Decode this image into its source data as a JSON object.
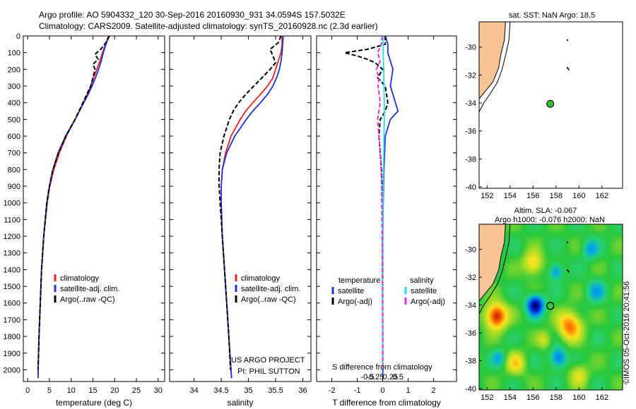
{
  "header": {
    "line1": "Argo profile: AO 5904332_120 30-Sep-2016 20160930_931 34.0594S 157.5032E",
    "line2": "Climatology: CARS2009. Satellite-adjusted climatology: synTS_20160928.nc (2.3d earlier)"
  },
  "colors": {
    "climatology": "#e8231f",
    "satellite": "#1f2fd6",
    "argo": "#000000",
    "sal_satellite": "#22e0e0",
    "sal_argo": "#e030e0",
    "land": "#f9c596",
    "float_marker": "#33bb33"
  },
  "chart_data": [
    {
      "type": "line",
      "id": "temperature",
      "xlabel": "temperature (deg C)",
      "ylabel": "",
      "xlim": [
        -1,
        31.5
      ],
      "ylim": [
        2070,
        0
      ],
      "xticks": [
        0,
        5,
        10,
        15,
        20,
        25,
        30
      ],
      "yticks": [
        0,
        100,
        200,
        300,
        400,
        500,
        600,
        700,
        800,
        900,
        1000,
        1100,
        1200,
        1300,
        1400,
        1500,
        1600,
        1700,
        1800,
        1900,
        2000
      ],
      "legend": [
        "climatology",
        "satellite-adj. clim.",
        "Argo(..raw -QC)"
      ],
      "series": [
        {
          "name": "climatology",
          "style": "red",
          "depth": [
            0,
            50,
            100,
            150,
            200,
            250,
            300,
            350,
            400,
            450,
            500,
            600,
            700,
            800,
            900,
            1000,
            1200,
            1400,
            1600,
            1800,
            2000,
            2050
          ],
          "values": [
            18.6,
            17.9,
            17.2,
            16.6,
            15.9,
            15.2,
            14.5,
            13.7,
            12.8,
            11.9,
            10.9,
            8.9,
            7.3,
            6.0,
            5.1,
            4.5,
            3.7,
            3.2,
            2.9,
            2.6,
            2.4,
            2.4
          ]
        },
        {
          "name": "satellite-adj. clim.",
          "style": "blue",
          "depth": [
            0,
            50,
            100,
            150,
            200,
            250,
            300,
            350,
            400,
            450,
            500,
            600,
            700,
            800,
            900,
            1000,
            1200,
            1400,
            1600,
            1800,
            2000,
            2050
          ],
          "values": [
            18.7,
            18.0,
            17.4,
            16.9,
            16.3,
            15.6,
            14.8,
            13.9,
            12.9,
            11.9,
            10.9,
            8.7,
            7.0,
            5.8,
            5.0,
            4.4,
            3.7,
            3.2,
            2.9,
            2.6,
            2.4,
            2.4
          ]
        },
        {
          "name": "Argo(..raw -QC)",
          "style": "black-dash",
          "depth": [
            0,
            40,
            80,
            110,
            140,
            170,
            200,
            250,
            300,
            350,
            400,
            450,
            500,
            600,
            700,
            800,
            900,
            1000,
            1200,
            1400,
            1600,
            1800,
            2000
          ],
          "values": [
            18.8,
            18.0,
            16.8,
            15.5,
            16.2,
            15.0,
            15.5,
            15.0,
            14.5,
            13.6,
            12.7,
            11.8,
            10.9,
            8.8,
            7.1,
            5.8,
            5.0,
            4.4,
            3.7,
            3.2,
            2.9,
            2.6,
            2.4
          ]
        }
      ]
    },
    {
      "type": "line",
      "id": "salinity",
      "xlabel": "salinity",
      "ylabel": "",
      "xlim": [
        33.55,
        36.15
      ],
      "ylim": [
        2070,
        0
      ],
      "xticks": [
        34,
        34.5,
        35,
        35.5,
        36
      ],
      "legend": [
        "climatology",
        "satellite-adj. clim.",
        "Argo(..raw -QC)"
      ],
      "annotation": [
        "US ARGO PROJECT",
        "PI: PHIL SUTTON"
      ],
      "series": [
        {
          "name": "climatology",
          "style": "red",
          "depth": [
            0,
            50,
            100,
            150,
            200,
            250,
            300,
            350,
            400,
            450,
            500,
            600,
            700,
            800,
            900,
            1000,
            1200,
            1400,
            1600,
            1800,
            2000,
            2050
          ],
          "values": [
            35.62,
            35.62,
            35.6,
            35.55,
            35.5,
            35.45,
            35.35,
            35.22,
            35.08,
            34.95,
            34.85,
            34.68,
            34.58,
            34.52,
            34.5,
            34.5,
            34.52,
            34.56,
            34.6,
            34.64,
            34.68,
            34.69
          ]
        },
        {
          "name": "satellite-adj. clim.",
          "style": "blue",
          "depth": [
            0,
            50,
            100,
            150,
            200,
            250,
            300,
            350,
            400,
            450,
            500,
            600,
            700,
            800,
            900,
            1000,
            1200,
            1400,
            1600,
            1800,
            2000,
            2050
          ],
          "values": [
            35.64,
            35.63,
            35.62,
            35.6,
            35.57,
            35.52,
            35.45,
            35.35,
            35.22,
            35.08,
            34.96,
            34.75,
            34.6,
            34.52,
            34.5,
            34.5,
            34.52,
            34.56,
            34.6,
            34.64,
            34.68,
            34.69
          ]
        },
        {
          "name": "Argo(..raw -QC)",
          "style": "black-dash",
          "depth": [
            0,
            40,
            80,
            120,
            160,
            200,
            250,
            300,
            350,
            400,
            450,
            500,
            600,
            700,
            800,
            900,
            1000,
            1200,
            1400,
            1600,
            1800,
            2000
          ],
          "values": [
            35.6,
            35.55,
            35.4,
            35.45,
            35.5,
            35.4,
            35.25,
            35.1,
            34.95,
            34.82,
            34.72,
            34.65,
            34.55,
            34.48,
            34.46,
            34.46,
            34.48,
            34.52,
            34.56,
            34.6,
            34.64,
            34.67
          ]
        }
      ]
    },
    {
      "type": "line",
      "id": "difference",
      "xlabel": "T difference from climatology",
      "xlabel_top": "S difference from climatology",
      "xlim": [
        -2.6,
        2.9
      ],
      "ylim": [
        2070,
        0
      ],
      "xticks": [
        -2,
        -1,
        0,
        1,
        2
      ],
      "sticks": [
        -0.5,
        -0.25,
        0.25,
        0.5
      ],
      "stick_labels": [
        "-0.5",
        "-0.25",
        "0.25",
        "0.5"
      ],
      "legend_titles": [
        "temperature",
        "salinity"
      ],
      "legend": [
        "satellite",
        "Argo(-adj)",
        "satellite",
        "Argo(-adj)"
      ],
      "series": [
        {
          "name": "satellite",
          "group": "temperature",
          "style": "blue",
          "depth": [
            0,
            50,
            100,
            150,
            200,
            300,
            400,
            450,
            500,
            600,
            800,
            1000,
            1200,
            1500,
            1800,
            2050
          ],
          "values": [
            0.1,
            0.2,
            0.2,
            0.3,
            0.4,
            0.3,
            0.5,
            0.6,
            0.3,
            0.1,
            0.05,
            0.02,
            0.0,
            0.0,
            0.0,
            0.0
          ]
        },
        {
          "name": "Argo(-adj)",
          "group": "temperature",
          "style": "black-dash",
          "depth": [
            0,
            50,
            80,
            100,
            120,
            140,
            160,
            200,
            250,
            300,
            400,
            450,
            500,
            600,
            700,
            800,
            1000,
            1200,
            1500,
            1800,
            2000
          ],
          "values": [
            0.1,
            0.1,
            -0.6,
            -1.5,
            -1.0,
            -0.6,
            -0.3,
            0.0,
            -0.2,
            0.1,
            0.2,
            0.1,
            -0.1,
            -0.15,
            -0.1,
            -0.05,
            0.0,
            0.0,
            0.0,
            0.0,
            0.0
          ]
        },
        {
          "name": "satellite",
          "group": "salinity",
          "style": "cyan",
          "depth": [
            0,
            100,
            200,
            300,
            400,
            500,
            600,
            800,
            1000,
            1500,
            2000
          ],
          "values": [
            0.02,
            0.02,
            0.04,
            0.05,
            0.06,
            0.06,
            0.05,
            0.03,
            0.01,
            0.0,
            0.0
          ]
        },
        {
          "name": "Argo(-adj)",
          "group": "salinity",
          "style": "magenta-dash",
          "depth": [
            0,
            50,
            100,
            150,
            200,
            250,
            300,
            400,
            500,
            600,
            700,
            800,
            900,
            1000,
            1200,
            1500,
            1800,
            2000
          ],
          "values": [
            -0.02,
            -0.05,
            -0.2,
            -0.1,
            -0.25,
            -0.15,
            -0.18,
            -0.1,
            -0.2,
            -0.15,
            -0.1,
            -0.06,
            -0.04,
            -0.04,
            -0.02,
            -0.01,
            0.0,
            0.0
          ]
        }
      ]
    },
    {
      "type": "map",
      "id": "sst-map",
      "title": "sat. SST: NaN Argo: 18.5",
      "xlim": [
        151.3,
        163.8
      ],
      "ylim": [
        -40.1,
        -28.2
      ],
      "xticks": [
        152,
        154,
        156,
        158,
        160,
        162
      ],
      "yticks": [
        -30,
        -32,
        -34,
        -36,
        -38,
        -40
      ],
      "float_position": [
        157.5,
        -34.06
      ]
    },
    {
      "type": "heatmap",
      "id": "sla-map",
      "title_line1": "Altim. SLA: -0.067",
      "title_line2": "Argo h1000: -0.076 h2000: NaN",
      "xlim": [
        151.3,
        163.8
      ],
      "ylim": [
        -40.1,
        -28.2
      ],
      "xticks": [
        152,
        154,
        156,
        158,
        160,
        162
      ],
      "yticks": [
        -30,
        -32,
        -34,
        -36,
        -38,
        -40
      ],
      "float_position": [
        157.5,
        -34.06
      ],
      "blobs": [
        {
          "lon": 152.8,
          "lat": -34.8,
          "amp": 1.0,
          "r": 0.9
        },
        {
          "lon": 156.2,
          "lat": -34.0,
          "amp": -1.0,
          "r": 0.7
        },
        {
          "lon": 159.2,
          "lat": -35.5,
          "amp": 0.75,
          "r": 1.0
        },
        {
          "lon": 156.0,
          "lat": -31.0,
          "amp": 0.55,
          "r": 0.8
        },
        {
          "lon": 158.0,
          "lat": -31.6,
          "amp": -0.5,
          "r": 0.6
        },
        {
          "lon": 161.0,
          "lat": -30.0,
          "amp": -0.4,
          "r": 0.7
        },
        {
          "lon": 158.2,
          "lat": -37.8,
          "amp": -0.6,
          "r": 0.7
        },
        {
          "lon": 154.5,
          "lat": -38.2,
          "amp": 0.45,
          "r": 0.8
        },
        {
          "lon": 161.5,
          "lat": -33.0,
          "amp": -0.35,
          "r": 0.8
        },
        {
          "lon": 160.0,
          "lat": -39.0,
          "amp": 0.35,
          "r": 0.8
        },
        {
          "lon": 153.0,
          "lat": -37.8,
          "amp": -0.35,
          "r": 0.6
        },
        {
          "lon": 157.0,
          "lat": -36.5,
          "amp": 0.3,
          "r": 0.6
        }
      ]
    }
  ],
  "watermark": "©IMOS 05-Oct-2016 20:41:56"
}
